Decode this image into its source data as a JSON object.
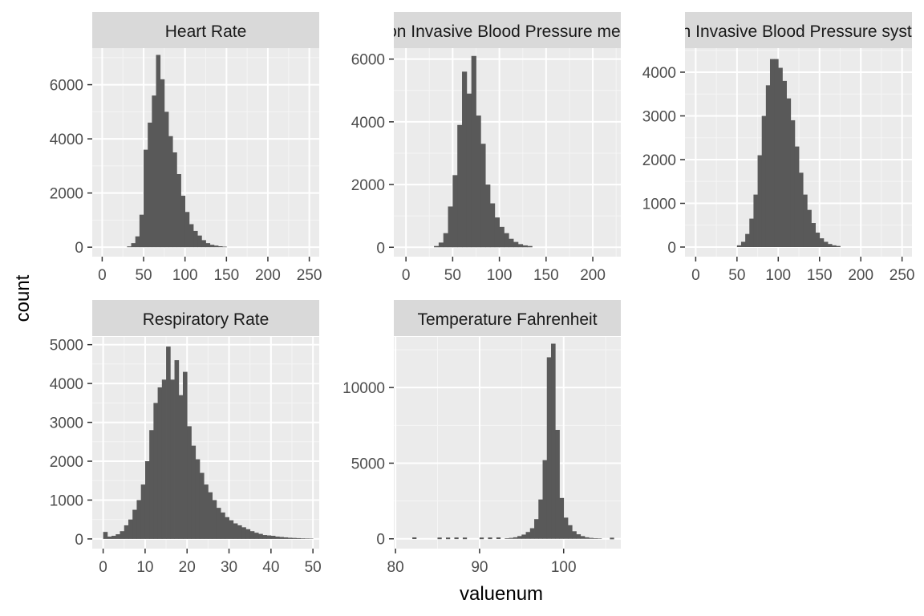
{
  "colors": {
    "panel_background": "#ebebeb",
    "strip_background": "#d9d9d9",
    "grid_major": "#ffffff",
    "grid_minor": "#f5f5f5",
    "bar_fill": "#595959",
    "tick_text": "#4d4d4d",
    "strip_text": "#1a1a1a"
  },
  "chart_data": {
    "type": "bar",
    "style": "faceted histogram",
    "xlabel": "valuenum",
    "ylabel": "count",
    "grid": true,
    "legend": "none",
    "panels": [
      {
        "id": "hr",
        "title": "Heart Rate",
        "xlim": [
          -12,
          262
        ],
        "ylim": [
          -350,
          7350
        ],
        "x_ticks": [
          0,
          50,
          100,
          150,
          200,
          250
        ],
        "y_ticks": [
          0,
          2000,
          4000,
          6000
        ],
        "bins": {
          "start": 30,
          "width": 5,
          "counts": [
            30,
            150,
            400,
            1200,
            3600,
            4600,
            5600,
            7100,
            6200,
            5000,
            4100,
            3500,
            2700,
            1900,
            1300,
            850,
            600,
            430,
            260,
            150,
            90,
            60,
            35,
            20
          ]
        }
      },
      {
        "id": "nibp-mean",
        "title": "Non Invasive Blood Pressure mean",
        "xlim": [
          -13,
          230
        ],
        "ylim": [
          -300,
          6350
        ],
        "x_ticks": [
          0,
          50,
          100,
          150,
          200
        ],
        "y_ticks": [
          0,
          2000,
          4000,
          6000
        ],
        "bins": {
          "start": 30,
          "width": 5,
          "counts": [
            40,
            150,
            450,
            1300,
            2300,
            3900,
            5600,
            4900,
            6100,
            4200,
            3300,
            2000,
            1400,
            950,
            650,
            450,
            270,
            170,
            100,
            60,
            40
          ]
        }
      },
      {
        "id": "nibp-sys",
        "title": "Non Invasive Blood Pressure systolic",
        "xlim": [
          -13,
          262
        ],
        "ylim": [
          -220,
          4550
        ],
        "x_ticks": [
          0,
          50,
          100,
          150,
          200,
          250
        ],
        "y_ticks": [
          0,
          1000,
          2000,
          3000,
          4000
        ],
        "bins": {
          "start": 50,
          "width": 5,
          "counts": [
            40,
            120,
            300,
            650,
            1200,
            2100,
            3000,
            3700,
            4300,
            4300,
            4100,
            3800,
            3400,
            2900,
            2300,
            1700,
            1200,
            850,
            550,
            330,
            200,
            120,
            70,
            40,
            25
          ]
        }
      },
      {
        "id": "rr",
        "title": "Respiratory Rate",
        "xlim": [
          -2.6,
          51.5
        ],
        "ylim": [
          -250,
          5200
        ],
        "x_ticks": [
          0,
          10,
          20,
          30,
          40,
          50
        ],
        "y_ticks": [
          0,
          1000,
          2000,
          3000,
          4000,
          5000
        ],
        "bins": {
          "start": 0,
          "width": 1,
          "counts": [
            180,
            60,
            80,
            120,
            200,
            350,
            500,
            750,
            1000,
            1400,
            2000,
            2800,
            3500,
            3900,
            4100,
            4950,
            4100,
            4600,
            3700,
            4300,
            2900,
            2400,
            2050,
            1700,
            1400,
            1200,
            1000,
            800,
            680,
            560,
            480,
            400,
            350,
            300,
            250,
            200,
            160,
            130,
            100,
            90,
            80,
            60,
            50,
            40,
            30,
            25,
            20,
            15,
            12,
            10
          ]
        }
      },
      {
        "id": "temp",
        "title": "Temperature Fahrenheit",
        "xlim": [
          79.8,
          106.8
        ],
        "ylim": [
          -650,
          13350
        ],
        "x_ticks": [
          80,
          90,
          100
        ],
        "y_ticks": [
          0,
          5000,
          10000
        ],
        "bins": {
          "start": 93,
          "width": 0.5,
          "counts": [
            40,
            60,
            100,
            180,
            280,
            450,
            700,
            1300,
            2600,
            5200,
            12000,
            12900,
            7200,
            2700,
            1400,
            900,
            500,
            300,
            180,
            100,
            60,
            40,
            30
          ]
        },
        "outliers": [
          {
            "x": 82,
            "count": 40
          },
          {
            "x": 85,
            "count": 30
          },
          {
            "x": 86,
            "count": 30
          },
          {
            "x": 87,
            "count": 35
          },
          {
            "x": 88,
            "count": 30
          },
          {
            "x": 90,
            "count": 30
          },
          {
            "x": 91,
            "count": 35
          },
          {
            "x": 92,
            "count": 40
          },
          {
            "x": 105.5,
            "count": 20
          }
        ]
      }
    ]
  }
}
